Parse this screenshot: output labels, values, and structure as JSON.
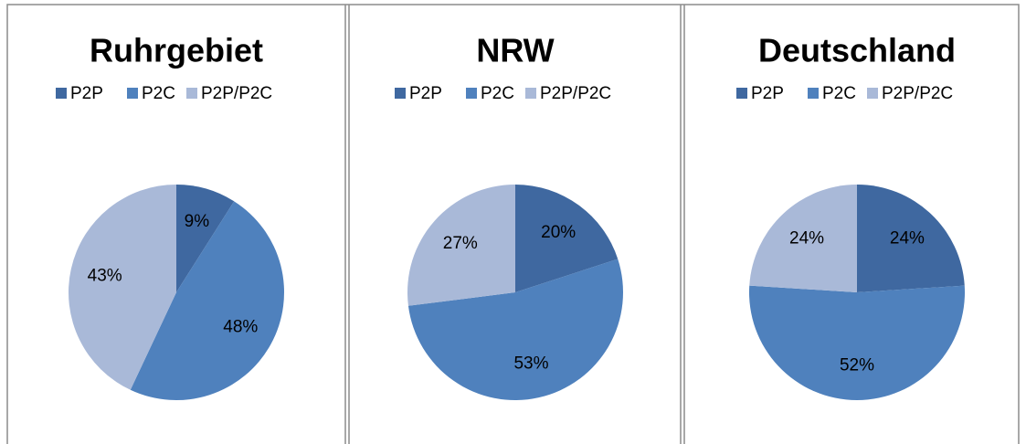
{
  "chart_data": [
    {
      "type": "pie",
      "title": "Ruhrgebiet",
      "categories": [
        "P2P",
        "P2C",
        "P2P/P2C"
      ],
      "values": [
        9,
        48,
        43
      ],
      "value_labels": [
        "9%",
        "48%",
        "43%"
      ],
      "colors": [
        "#3f68a0",
        "#4f81bd",
        "#a9b9d8"
      ]
    },
    {
      "type": "pie",
      "title": "NRW",
      "categories": [
        "P2P",
        "P2C",
        "P2P/P2C"
      ],
      "values": [
        20,
        53,
        27
      ],
      "value_labels": [
        "20%",
        "53%",
        "27%"
      ],
      "colors": [
        "#3f68a0",
        "#4f81bd",
        "#a9b9d8"
      ]
    },
    {
      "type": "pie",
      "title": "Deutschland",
      "categories": [
        "P2P",
        "P2C",
        "P2P/P2C"
      ],
      "values": [
        24,
        52,
        24
      ],
      "value_labels": [
        "24%",
        "52%",
        "24%"
      ],
      "colors": [
        "#3f68a0",
        "#4f81bd",
        "#a9b9d8"
      ]
    }
  ]
}
